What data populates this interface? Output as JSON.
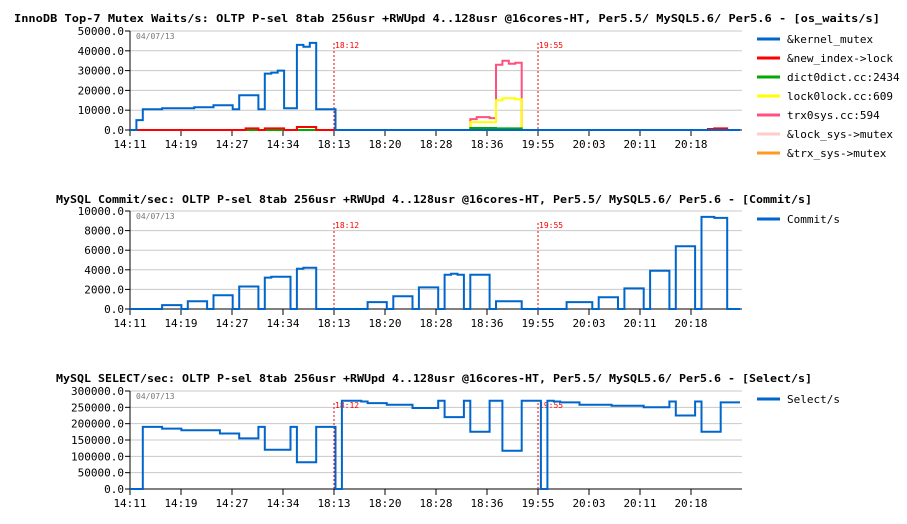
{
  "chart_data": [
    {
      "type": "line",
      "title": "InnoDB Top-7 Mutex Waits/s: OLTP P-sel 8tab 256usr +RWUpd 4..128usr @16cores-HT, Per5.5/ MySQL5.6/ Per5.6 - [os_waits/s]",
      "date": "04/07/13",
      "x_ticks": [
        "14:11",
        "14:19",
        "14:27",
        "14:34",
        "18:13",
        "18:20",
        "18:28",
        "18:36",
        "19:55",
        "20:03",
        "20:11",
        "20:18"
      ],
      "ylim": [
        0,
        50000
      ],
      "y_ticks": [
        "0.0",
        "10000.0",
        "20000.0",
        "30000.0",
        "40000.0",
        "50000.0"
      ],
      "markers": [
        {
          "label": "18:12",
          "at_tick": "18:13"
        },
        {
          "label": "19:55",
          "at_tick": "19:55"
        }
      ],
      "grid": true,
      "legend": "right",
      "series": [
        {
          "name": "&kernel_mutex",
          "color": "#0066cc",
          "values": [
            0,
            5000,
            10500,
            10500,
            10500,
            11000,
            11000,
            11000,
            11000,
            11000,
            11500,
            11500,
            11500,
            12500,
            12500,
            12500,
            10500,
            17500,
            17500,
            17500,
            10500,
            28500,
            29000,
            30000,
            11000,
            11000,
            43000,
            42000,
            44000,
            10500,
            10500,
            10500,
            0,
            0,
            0,
            0,
            0,
            0,
            0,
            0,
            0,
            0,
            0,
            0,
            0,
            0,
            0,
            0,
            0,
            0,
            0,
            0,
            0,
            0,
            0,
            0,
            0,
            0,
            0,
            0,
            0,
            0,
            0,
            0,
            0,
            0,
            0,
            0,
            0,
            0,
            0,
            0,
            0,
            0,
            0,
            0,
            0,
            0,
            0,
            0,
            0,
            0,
            0,
            0,
            0,
            0,
            0,
            0,
            0,
            0,
            0,
            0,
            0,
            0,
            0,
            0
          ]
        },
        {
          "name": "&new_index->lock",
          "color": "#ff0000",
          "values": [
            0,
            0,
            0,
            0,
            0,
            0,
            0,
            0,
            0,
            0,
            0,
            0,
            0,
            0,
            0,
            0,
            0,
            0,
            800,
            800,
            0,
            800,
            800,
            800,
            0,
            0,
            1500,
            1500,
            1500,
            0,
            0,
            0,
            0,
            0,
            0,
            0,
            0,
            0,
            0,
            0,
            0,
            0,
            0,
            0,
            0,
            0,
            0,
            0,
            0,
            0,
            0,
            0,
            0,
            0,
            0,
            0,
            0,
            0,
            0,
            0,
            0,
            0,
            0,
            0,
            0,
            0,
            0,
            0,
            0,
            0,
            0,
            0,
            0,
            0,
            0,
            0,
            0,
            0,
            0,
            0,
            0,
            0,
            0,
            0,
            0,
            0,
            0,
            0,
            0,
            0,
            500,
            800,
            800,
            0,
            0,
            0
          ]
        },
        {
          "name": "dict0dict.cc:2434",
          "color": "#00aa00",
          "values": [
            0,
            0,
            0,
            0,
            0,
            0,
            0,
            0,
            0,
            0,
            0,
            0,
            0,
            0,
            0,
            0,
            0,
            0,
            0,
            0,
            0,
            0,
            0,
            0,
            0,
            0,
            0,
            0,
            0,
            0,
            0,
            0,
            0,
            0,
            0,
            0,
            0,
            0,
            0,
            0,
            0,
            0,
            0,
            0,
            0,
            0,
            0,
            0,
            0,
            0,
            0,
            0,
            0,
            1000,
            1000,
            1000,
            1000,
            800,
            800,
            800,
            800,
            0,
            0,
            0,
            0,
            0,
            0,
            0,
            0,
            0,
            0,
            0,
            0,
            0,
            0,
            0,
            0,
            0,
            0,
            0,
            0,
            0,
            0,
            0,
            0,
            0,
            0,
            0,
            0,
            0,
            0,
            0,
            0,
            0,
            0,
            0
          ]
        },
        {
          "name": "lock0lock.cc:609",
          "color": "#ffff00",
          "values": [
            0,
            0,
            0,
            0,
            0,
            0,
            0,
            0,
            0,
            0,
            0,
            0,
            0,
            0,
            0,
            0,
            0,
            0,
            0,
            0,
            0,
            0,
            0,
            0,
            0,
            0,
            0,
            0,
            0,
            0,
            0,
            0,
            0,
            0,
            0,
            0,
            0,
            0,
            0,
            0,
            0,
            0,
            0,
            0,
            0,
            0,
            0,
            0,
            0,
            0,
            0,
            0,
            0,
            4000,
            4000,
            4000,
            4000,
            15000,
            16000,
            16000,
            15500,
            0,
            0,
            0,
            0,
            0,
            0,
            0,
            0,
            0,
            0,
            0,
            0,
            0,
            0,
            0,
            0,
            0,
            0,
            0,
            0,
            0,
            0,
            0,
            0,
            0,
            0,
            0,
            0,
            0,
            0,
            0,
            0,
            0,
            0,
            0
          ]
        },
        {
          "name": "trx0sys.cc:594",
          "color": "#ff5080",
          "values": [
            0,
            0,
            0,
            0,
            0,
            0,
            0,
            0,
            0,
            0,
            0,
            0,
            0,
            0,
            0,
            0,
            0,
            0,
            0,
            0,
            0,
            0,
            0,
            0,
            0,
            0,
            0,
            0,
            0,
            0,
            0,
            0,
            0,
            0,
            0,
            0,
            0,
            0,
            0,
            0,
            0,
            0,
            0,
            0,
            0,
            0,
            0,
            0,
            0,
            0,
            0,
            0,
            0,
            5500,
            6500,
            6500,
            6000,
            33000,
            35000,
            33500,
            34000,
            0,
            0,
            0,
            0,
            0,
            0,
            0,
            0,
            0,
            0,
            0,
            0,
            0,
            0,
            0,
            0,
            0,
            0,
            0,
            0,
            0,
            0,
            0,
            0,
            0,
            0,
            0,
            0,
            0,
            0,
            0,
            0,
            0,
            0,
            0
          ]
        },
        {
          "name": "&lock_sys->mutex",
          "color": "#ffcccc",
          "values": [
            0,
            0,
            0,
            0,
            0,
            0,
            0,
            0,
            0,
            0,
            0,
            0,
            0,
            0,
            0,
            0,
            0,
            0,
            0,
            0,
            0,
            0,
            0,
            0,
            0,
            0,
            0,
            0,
            0,
            0,
            0,
            0,
            0,
            0,
            0,
            0,
            0,
            0,
            0,
            0,
            0,
            0,
            0,
            0,
            0,
            0,
            0,
            0,
            0,
            0,
            0,
            0,
            0,
            0,
            0,
            0,
            0,
            0,
            0,
            0,
            0,
            0,
            0,
            0,
            0,
            0,
            0,
            0,
            0,
            0,
            0,
            0,
            0,
            0,
            0,
            0,
            0,
            0,
            0,
            0,
            0,
            0,
            0,
            0,
            0,
            0,
            0,
            0,
            0,
            0,
            0,
            0,
            0,
            0,
            0,
            0
          ]
        },
        {
          "name": "&trx_sys->mutex",
          "color": "#ff9922",
          "values": [
            0,
            0,
            0,
            0,
            0,
            0,
            0,
            0,
            0,
            0,
            0,
            0,
            0,
            0,
            0,
            0,
            0,
            0,
            0,
            0,
            0,
            0,
            0,
            0,
            0,
            0,
            0,
            0,
            0,
            0,
            0,
            0,
            0,
            0,
            0,
            0,
            0,
            0,
            0,
            0,
            0,
            0,
            0,
            0,
            0,
            0,
            0,
            0,
            0,
            0,
            0,
            0,
            0,
            0,
            0,
            0,
            0,
            0,
            0,
            0,
            0,
            0,
            0,
            0,
            0,
            0,
            0,
            0,
            0,
            0,
            0,
            0,
            0,
            0,
            0,
            0,
            0,
            0,
            0,
            0,
            0,
            0,
            0,
            0,
            0,
            0,
            0,
            0,
            0,
            0,
            0,
            0,
            0,
            0,
            0,
            0
          ]
        }
      ]
    },
    {
      "type": "line",
      "title": "MySQL Commit/sec: OLTP P-sel 8tab 256usr +RWUpd 4..128usr @16cores-HT, Per5.5/ MySQL5.6/ Per5.6 - [Commit/s]",
      "date": "04/07/13",
      "x_ticks": [
        "14:11",
        "14:19",
        "14:27",
        "14:34",
        "18:13",
        "18:20",
        "18:28",
        "18:36",
        "19:55",
        "20:03",
        "20:11",
        "20:18"
      ],
      "ylim": [
        0,
        10000
      ],
      "y_ticks": [
        "0.0",
        "2000.0",
        "4000.0",
        "6000.0",
        "8000.0",
        "10000.0"
      ],
      "markers": [
        {
          "label": "18:12",
          "at_tick": "18:13"
        },
        {
          "label": "19:55",
          "at_tick": "19:55"
        }
      ],
      "grid": true,
      "legend": "right",
      "series": [
        {
          "name": "Commit/s",
          "color": "#0066cc",
          "values": [
            0,
            0,
            0,
            0,
            0,
            400,
            400,
            400,
            0,
            800,
            800,
            800,
            0,
            1400,
            1400,
            1400,
            0,
            2300,
            2300,
            2300,
            0,
            3200,
            3300,
            3300,
            3300,
            0,
            4100,
            4200,
            4200,
            0,
            0,
            0,
            0,
            0,
            0,
            0,
            0,
            700,
            700,
            700,
            0,
            1300,
            1300,
            1300,
            0,
            2200,
            2200,
            2200,
            0,
            3500,
            3600,
            3500,
            0,
            3500,
            3500,
            3500,
            0,
            800,
            800,
            800,
            800,
            0,
            0,
            0,
            0,
            0,
            0,
            0,
            700,
            700,
            700,
            700,
            0,
            1200,
            1200,
            1200,
            0,
            2100,
            2100,
            2100,
            0,
            3900,
            3900,
            3900,
            0,
            6400,
            6400,
            6400,
            0,
            9400,
            9400,
            9300,
            9300,
            0,
            0,
            0
          ]
        }
      ]
    },
    {
      "type": "line",
      "title": "MySQL SELECT/sec: OLTP P-sel 8tab 256usr +RWUpd 4..128usr @16cores-HT, Per5.5/ MySQL5.6/ Per5.6 - [Select/s]",
      "date": "04/07/13",
      "x_ticks": [
        "14:11",
        "14:19",
        "14:27",
        "14:34",
        "18:13",
        "18:20",
        "18:28",
        "18:36",
        "19:55",
        "20:03",
        "20:11",
        "20:18"
      ],
      "ylim": [
        0,
        300000
      ],
      "y_ticks": [
        "0.0",
        "50000.0",
        "100000.0",
        "150000.0",
        "200000.0",
        "250000.0",
        "300000.0"
      ],
      "markers": [
        {
          "label": "18:12",
          "at_tick": "18:13"
        },
        {
          "label": "19:55",
          "at_tick": "19:55"
        }
      ],
      "grid": true,
      "legend": "right",
      "series": [
        {
          "name": "Select/s",
          "color": "#0066cc",
          "values": [
            0,
            0,
            190000,
            190000,
            190000,
            185000,
            185000,
            185000,
            180000,
            180000,
            180000,
            180000,
            180000,
            180000,
            170000,
            170000,
            170000,
            155000,
            155000,
            155000,
            190000,
            120000,
            120000,
            120000,
            120000,
            190000,
            82000,
            82000,
            82000,
            190000,
            190000,
            190000,
            0,
            270000,
            270000,
            270000,
            268000,
            263000,
            263000,
            263000,
            258000,
            258000,
            258000,
            258000,
            248000,
            248000,
            248000,
            248000,
            270000,
            220000,
            220000,
            220000,
            270000,
            175000,
            175000,
            175000,
            270000,
            270000,
            117000,
            117000,
            117000,
            270000,
            270000,
            270000,
            0,
            270000,
            268000,
            265000,
            265000,
            265000,
            258000,
            258000,
            258000,
            258000,
            258000,
            255000,
            255000,
            255000,
            255000,
            255000,
            250000,
            250000,
            250000,
            250000,
            268000,
            225000,
            225000,
            225000,
            268000,
            175000,
            175000,
            175000,
            265000,
            265000,
            265000,
            265000
          ]
        }
      ]
    }
  ]
}
